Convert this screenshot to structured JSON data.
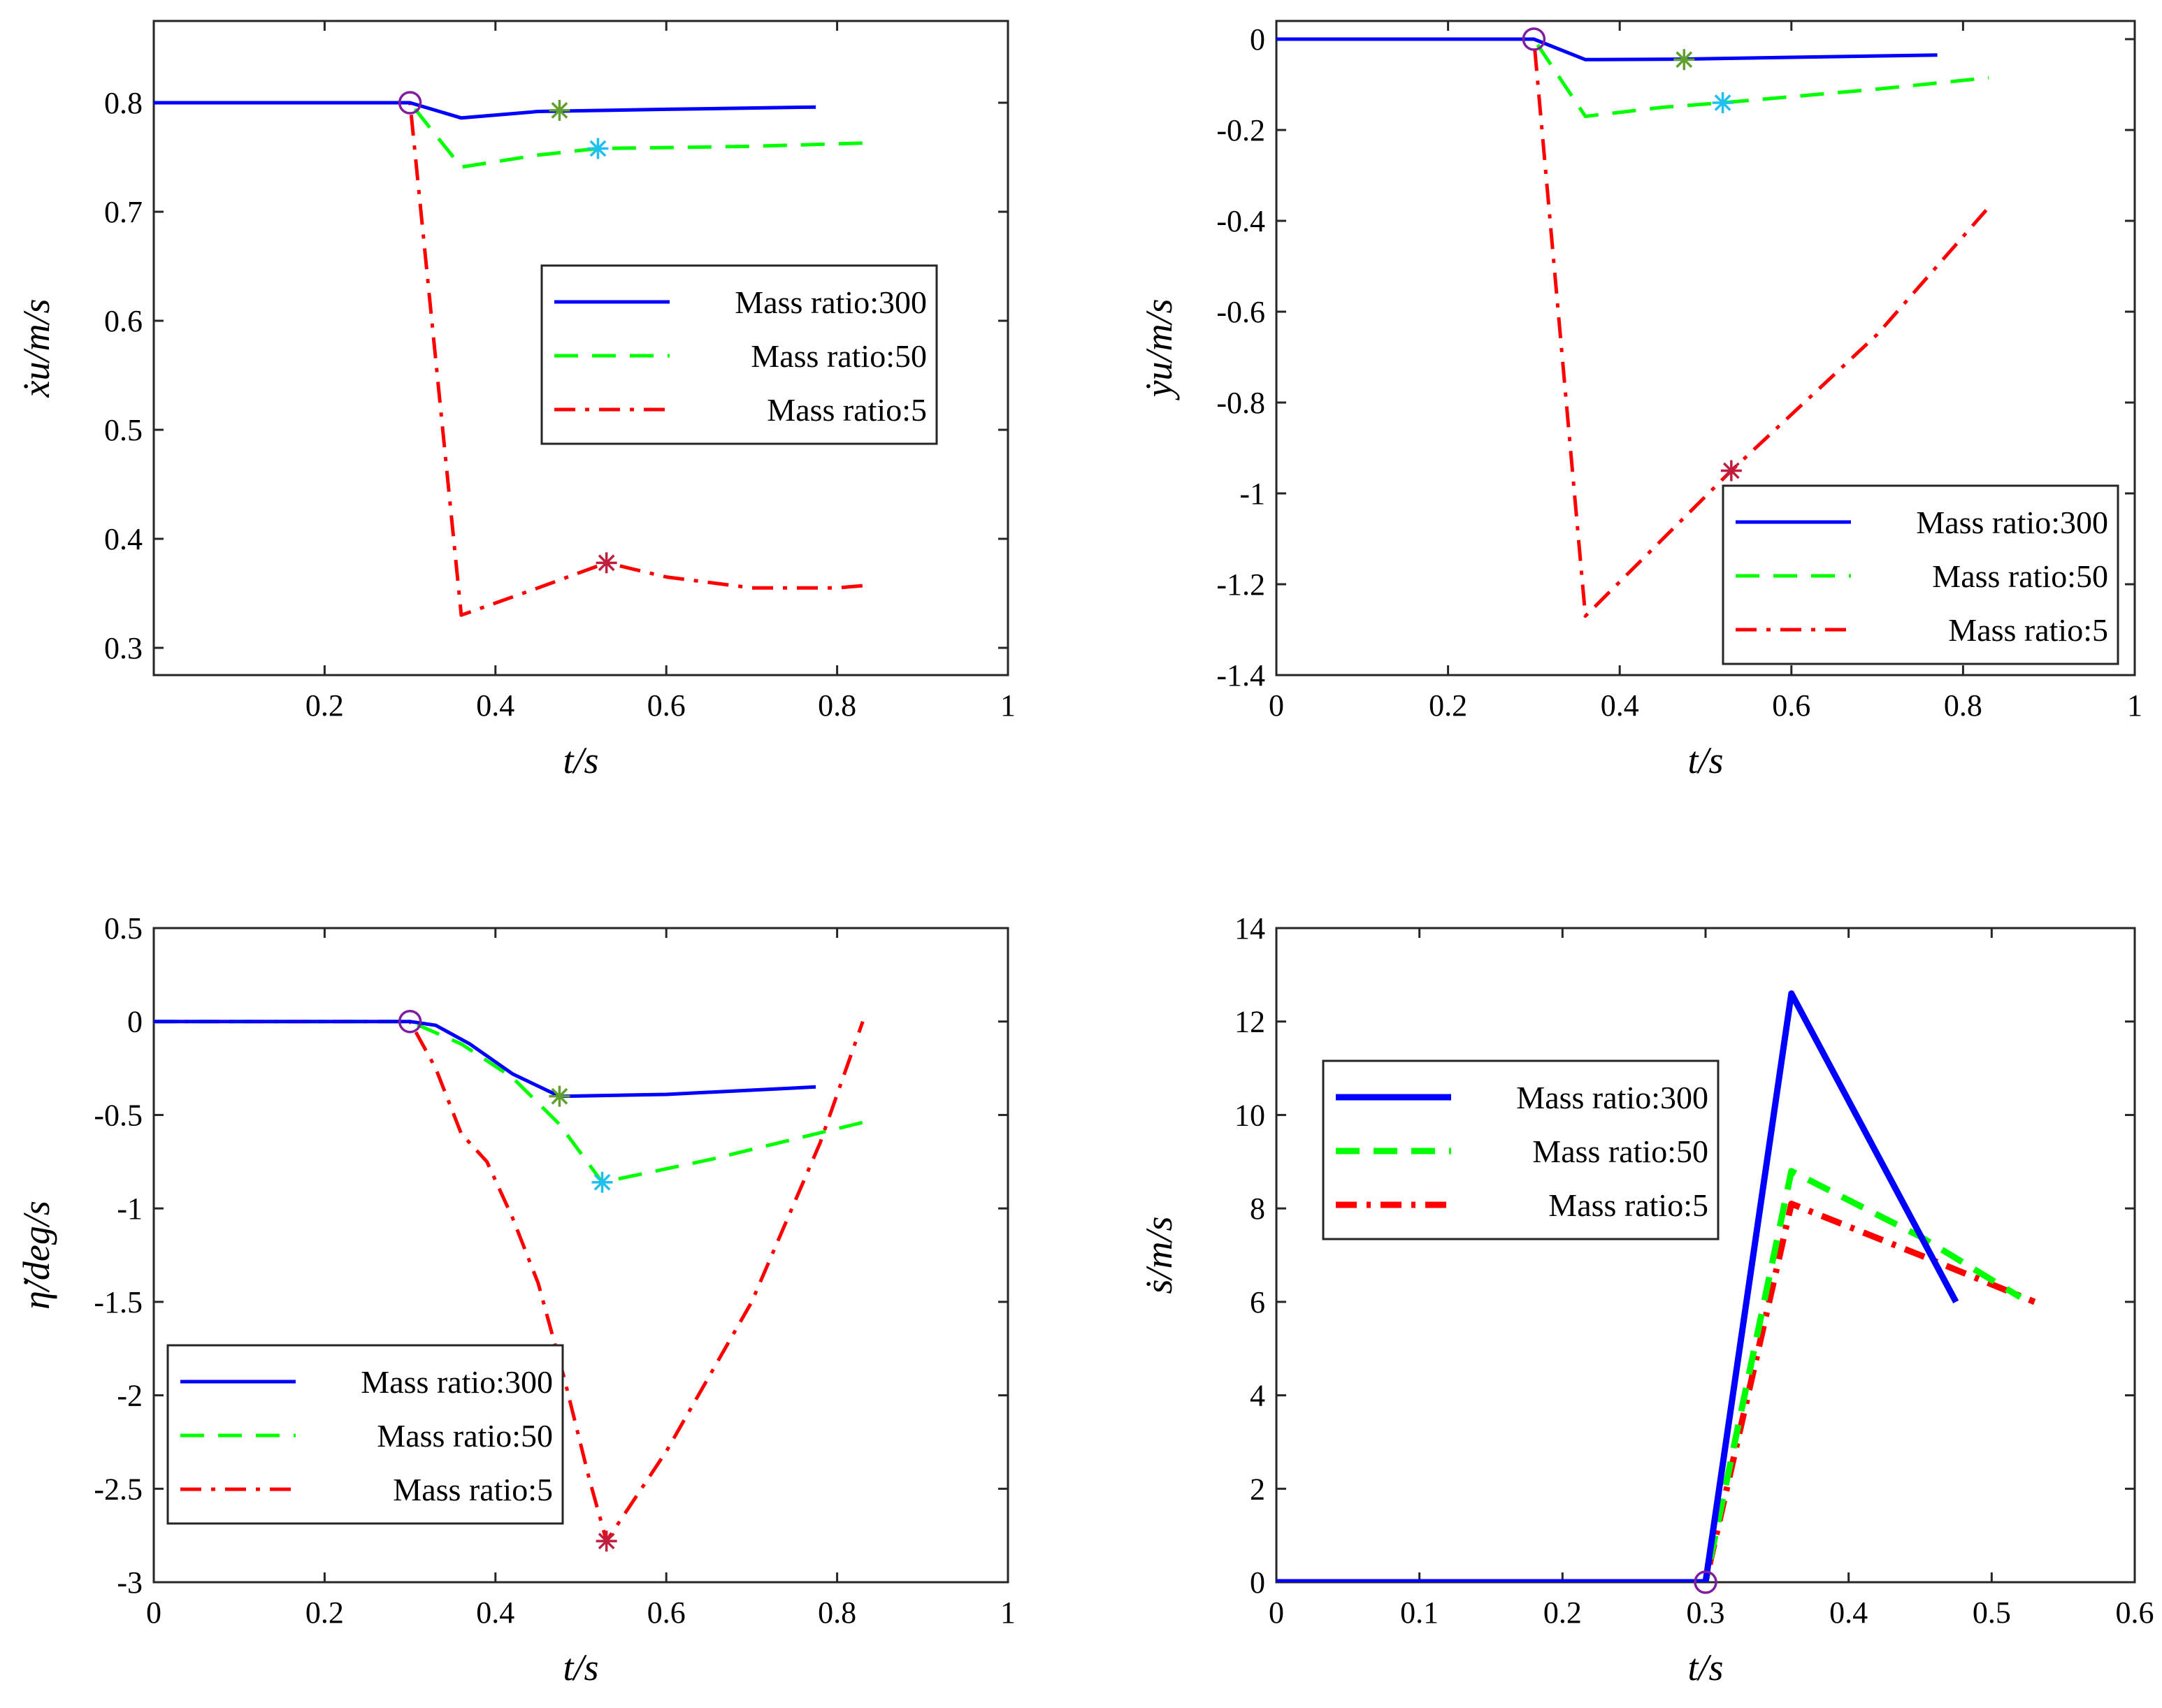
{
  "chart_data": [
    {
      "type": "line",
      "panel": "top-left",
      "title": "",
      "xlabel": "t/s",
      "ylabel": "ẋu/m/s",
      "xlim": [
        0.0,
        1.0
      ],
      "ylim": [
        0.275,
        0.875
      ],
      "xticks": [
        0.2,
        0.4,
        0.6,
        0.8,
        1
      ],
      "yticks": [
        0.3,
        0.4,
        0.5,
        0.6,
        0.7,
        0.8
      ],
      "grid": false,
      "legend_position": "center-right",
      "series": [
        {
          "name": "Mass ratio:300",
          "color": "#0000ff",
          "dash": "solid",
          "x": [
            0.0,
            0.3,
            0.36,
            0.45,
            0.6,
            0.775
          ],
          "y": [
            0.8,
            0.8,
            0.786,
            0.792,
            0.794,
            0.796
          ]
        },
        {
          "name": "Mass ratio:50",
          "color": "#00ff00",
          "dash": "dashed",
          "x": [
            0.0,
            0.3,
            0.36,
            0.45,
            0.52,
            0.7,
            0.83
          ],
          "y": [
            0.8,
            0.8,
            0.741,
            0.752,
            0.758,
            0.76,
            0.763
          ]
        },
        {
          "name": "Mass ratio:5",
          "color": "#ff0000",
          "dash": "dashdot",
          "x": [
            0.0,
            0.3,
            0.36,
            0.45,
            0.53,
            0.6,
            0.7,
            0.8,
            0.83
          ],
          "y": [
            0.8,
            0.8,
            0.33,
            0.355,
            0.378,
            0.365,
            0.355,
            0.355,
            0.357
          ]
        }
      ],
      "markers": [
        {
          "type": "circle",
          "color": "#7f1f9f",
          "x": 0.3,
          "y": 0.8
        },
        {
          "type": "star",
          "color": "#5fa02f",
          "x": 0.475,
          "y": 0.793
        },
        {
          "type": "star",
          "color": "#1fbfef",
          "x": 0.52,
          "y": 0.758
        },
        {
          "type": "star",
          "color": "#bf1f3f",
          "x": 0.53,
          "y": 0.378
        }
      ]
    },
    {
      "type": "line",
      "panel": "top-right",
      "title": "",
      "xlabel": "t/s",
      "ylabel": "ẏu/m/s",
      "xlim": [
        0.0,
        1.0
      ],
      "ylim": [
        -1.4,
        0.04
      ],
      "xticks": [
        0,
        0.2,
        0.4,
        0.6,
        0.8,
        1
      ],
      "yticks": [
        -1.4,
        -1.2,
        -1,
        -0.8,
        -0.6,
        -0.4,
        -0.2,
        0
      ],
      "grid": false,
      "legend_position": "lower-right",
      "series": [
        {
          "name": "Mass ratio:300",
          "color": "#0000ff",
          "dash": "solid",
          "x": [
            0.0,
            0.3,
            0.36,
            0.475,
            0.6,
            0.77
          ],
          "y": [
            0.0,
            0.0,
            -0.045,
            -0.044,
            -0.04,
            -0.035
          ]
        },
        {
          "name": "Mass ratio:50",
          "color": "#00ff00",
          "dash": "dashed",
          "x": [
            0.0,
            0.3,
            0.36,
            0.45,
            0.52,
            0.7,
            0.83
          ],
          "y": [
            0.0,
            0.0,
            -0.17,
            -0.15,
            -0.14,
            -0.11,
            -0.085
          ]
        },
        {
          "name": "Mass ratio:5",
          "color": "#ff0000",
          "dash": "dashdot",
          "x": [
            0.0,
            0.3,
            0.36,
            0.53,
            0.7,
            0.83
          ],
          "y": [
            0.0,
            0.0,
            -1.27,
            -0.95,
            -0.65,
            -0.37
          ]
        }
      ],
      "markers": [
        {
          "type": "circle",
          "color": "#7f1f9f",
          "x": 0.3,
          "y": 0.0
        },
        {
          "type": "star",
          "color": "#5fa02f",
          "x": 0.475,
          "y": -0.045
        },
        {
          "type": "star",
          "color": "#1fbfef",
          "x": 0.52,
          "y": -0.14
        },
        {
          "type": "star",
          "color": "#bf1f3f",
          "x": 0.53,
          "y": -0.95
        }
      ]
    },
    {
      "type": "line",
      "panel": "bottom-left",
      "title": "",
      "xlabel": "t/s",
      "ylabel": "η̇/deg/s",
      "xlim": [
        0.0,
        1.0
      ],
      "ylim": [
        -3.0,
        0.5
      ],
      "xticks": [
        0,
        0.2,
        0.4,
        0.6,
        0.8,
        1
      ],
      "yticks": [
        -3,
        -2.5,
        -2,
        -1.5,
        -1,
        -0.5,
        0,
        0.5
      ],
      "grid": false,
      "legend_position": "lower-left",
      "series": [
        {
          "name": "Mass ratio:300",
          "color": "#0000ff",
          "dash": "solid",
          "x": [
            0.0,
            0.3,
            0.33,
            0.37,
            0.42,
            0.475,
            0.6,
            0.775
          ],
          "y": [
            0.0,
            0.0,
            -0.02,
            -0.12,
            -0.28,
            -0.4,
            -0.39,
            -0.35
          ]
        },
        {
          "name": "Mass ratio:50",
          "color": "#00ff00",
          "dash": "dashed",
          "x": [
            0.0,
            0.3,
            0.36,
            0.42,
            0.475,
            0.525,
            0.65,
            0.83
          ],
          "y": [
            0.0,
            0.0,
            -0.12,
            -0.3,
            -0.55,
            -0.86,
            -0.74,
            -0.54
          ]
        },
        {
          "name": "Mass ratio:5",
          "color": "#ff0000",
          "dash": "dashdot",
          "x": [
            0.0,
            0.3,
            0.33,
            0.36,
            0.39,
            0.42,
            0.45,
            0.48,
            0.51,
            0.53,
            0.6,
            0.7,
            0.78,
            0.83
          ],
          "y": [
            0.0,
            0.0,
            -0.25,
            -0.6,
            -0.75,
            -1.05,
            -1.4,
            -1.9,
            -2.45,
            -2.78,
            -2.3,
            -1.5,
            -0.65,
            0.0
          ]
        }
      ],
      "markers": [
        {
          "type": "circle",
          "color": "#7f1f9f",
          "x": 0.3,
          "y": 0.0
        },
        {
          "type": "star",
          "color": "#5fa02f",
          "x": 0.475,
          "y": -0.4
        },
        {
          "type": "star",
          "color": "#1fbfef",
          "x": 0.525,
          "y": -0.86
        },
        {
          "type": "star",
          "color": "#bf1f3f",
          "x": 0.53,
          "y": -2.78
        }
      ]
    },
    {
      "type": "line",
      "panel": "bottom-right",
      "title": "",
      "xlabel": "t/s",
      "ylabel": "ṡ/m/s",
      "xlim": [
        0.0,
        0.6
      ],
      "ylim": [
        0.0,
        14.0
      ],
      "xticks": [
        0,
        0.1,
        0.2,
        0.3,
        0.4,
        0.5,
        0.6
      ],
      "yticks": [
        0,
        2,
        4,
        6,
        8,
        10,
        12,
        14
      ],
      "grid": false,
      "legend_position": "upper-left",
      "series": [
        {
          "name": "Mass ratio:300",
          "color": "#0000ff",
          "dash": "solid",
          "x": [
            0.0,
            0.3,
            0.36,
            0.475
          ],
          "y": [
            0.0,
            0.0,
            12.6,
            6.0
          ]
        },
        {
          "name": "Mass ratio:50",
          "color": "#00ff00",
          "dash": "dashed",
          "x": [
            0.0,
            0.3,
            0.36,
            0.45,
            0.52
          ],
          "y": [
            0.0,
            0.0,
            8.8,
            7.4,
            6.1
          ]
        },
        {
          "name": "Mass ratio:5",
          "color": "#ff0000",
          "dash": "dashdot",
          "x": [
            0.0,
            0.3,
            0.36,
            0.45,
            0.53
          ],
          "y": [
            0.0,
            0.0,
            8.1,
            7.0,
            6.0
          ]
        }
      ],
      "markers": [
        {
          "type": "circle",
          "color": "#7f1f9f",
          "x": 0.3,
          "y": 0.0
        }
      ]
    }
  ]
}
